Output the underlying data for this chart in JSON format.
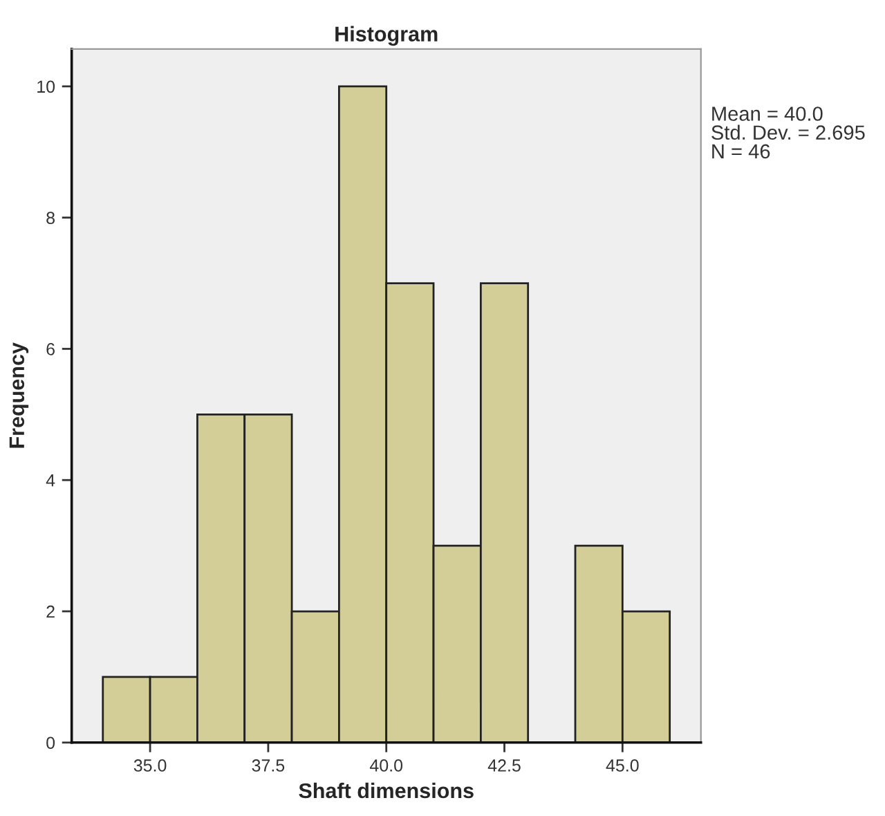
{
  "chart_data": {
    "type": "histogram",
    "title": "Histogram",
    "xlabel": "Shaft dimensions",
    "ylabel": "Frequency",
    "bins": [
      34,
      35,
      36,
      37,
      38,
      39,
      40,
      41,
      42,
      43,
      44,
      45,
      46
    ],
    "values": [
      1,
      1,
      5,
      5,
      2,
      10,
      7,
      3,
      7,
      0,
      3,
      2
    ],
    "color": "#d3ce97",
    "xlim": [
      33.34,
      46.66
    ],
    "xticks": [
      {
        "value": 35,
        "label": "35.0"
      },
      37.5,
      {
        "value": 40,
        "label": "40.0"
      },
      42.5,
      {
        "value": 45,
        "label": "45.0"
      }
    ],
    "ylim": [
      0,
      10.57
    ],
    "yticks": [
      0,
      2,
      4,
      6,
      8,
      10
    ],
    "grid": false,
    "annotations": [
      "Mean = 40.0",
      "Std. Dev. = 2.695",
      "N = 46"
    ]
  }
}
